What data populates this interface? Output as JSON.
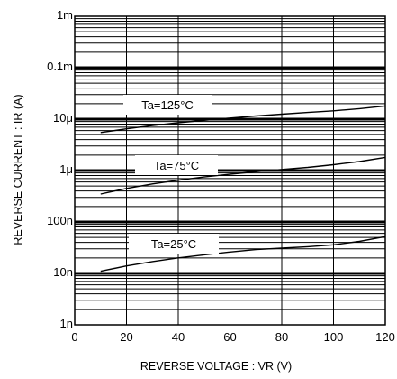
{
  "chart_data": {
    "type": "line",
    "xlabel": "REVERSE  VOLTAGE : VR (V)",
    "ylabel": "REVERSE  CURRENT : IR (A)",
    "xlim": [
      0,
      120
    ],
    "ylim": [
      1e-09,
      0.001
    ],
    "yscale": "log",
    "grid": true,
    "x_ticks": [
      0,
      20,
      40,
      60,
      80,
      100,
      120
    ],
    "x_tick_labels": [
      "0",
      "20",
      "40",
      "60",
      "80",
      "100",
      "120"
    ],
    "y_ticks": [
      1e-09,
      1e-08,
      1e-07,
      1e-06,
      1e-05,
      0.0001,
      0.001
    ],
    "y_tick_labels": [
      "1n",
      "10n",
      "100n",
      "1μ",
      "10μ",
      "0.1m",
      "1m"
    ],
    "series": [
      {
        "name": "Ta=125°C",
        "x": [
          10,
          20,
          30,
          40,
          50,
          60,
          70,
          80,
          90,
          100,
          110,
          120
        ],
        "y": [
          5.5e-06,
          6.5e-06,
          7.5e-06,
          8.5e-06,
          9.5e-06,
          1.05e-05,
          1.15e-05,
          1.25e-05,
          1.35e-05,
          1.45e-05,
          1.6e-05,
          1.8e-05
        ]
      },
      {
        "name": "Ta=75°C",
        "x": [
          10,
          20,
          30,
          40,
          50,
          60,
          70,
          80,
          90,
          100,
          110,
          120
        ],
        "y": [
          3.5e-07,
          4.5e-07,
          5.5e-07,
          6.5e-07,
          7.5e-07,
          8.5e-07,
          9.5e-07,
          1.05e-06,
          1.15e-06,
          1.3e-06,
          1.5e-06,
          1.8e-06
        ]
      },
      {
        "name": "Ta=25°C",
        "x": [
          10,
          20,
          30,
          40,
          50,
          60,
          70,
          80,
          90,
          100,
          110,
          120
        ],
        "y": [
          1.1e-08,
          1.4e-08,
          1.7e-08,
          2e-08,
          2.3e-08,
          2.6e-08,
          2.9e-08,
          3.1e-08,
          3.3e-08,
          3.6e-08,
          4.2e-08,
          5.2e-08
        ]
      }
    ]
  }
}
